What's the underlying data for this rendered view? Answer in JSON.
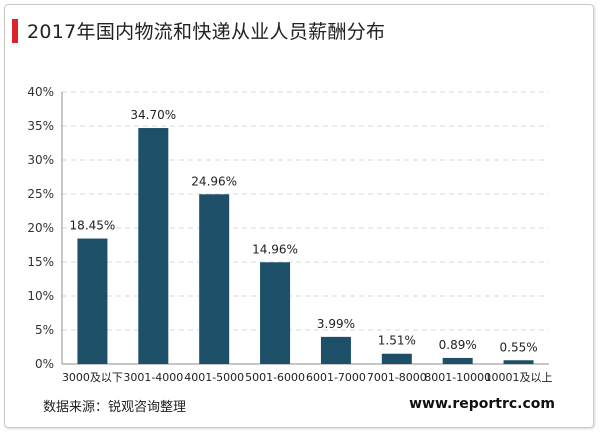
{
  "title": "2017年国内物流和快递从业人员薪酬分布",
  "source": "数据来源：锐观咨询整理",
  "website": "www.reportrc.com",
  "colors": {
    "bar": "#1d5068",
    "accent": "#d9232d",
    "grid": "#d9d9d9",
    "axis": "#8c8c8c"
  },
  "chart_data": {
    "type": "bar",
    "categories": [
      "3000及以下",
      "3001-4000",
      "4001-5000",
      "5001-6000",
      "6001-7000",
      "7001-8000",
      "8001-10000",
      "10001及以上"
    ],
    "values": [
      18.45,
      34.7,
      24.96,
      14.96,
      3.99,
      1.51,
      0.89,
      0.55
    ],
    "value_labels": [
      "18.45%",
      "34.70%",
      "24.96%",
      "14.96%",
      "3.99%",
      "1.51%",
      "0.89%",
      "0.55%"
    ],
    "y_ticks": [
      "0%",
      "5%",
      "10%",
      "15%",
      "20%",
      "25%",
      "30%",
      "35%",
      "40%"
    ],
    "ylim": [
      0,
      40
    ],
    "y_step": 5,
    "grid": true,
    "legend": "none"
  }
}
